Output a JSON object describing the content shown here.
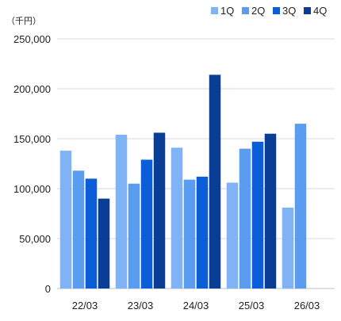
{
  "chart_data": {
    "type": "bar",
    "unit_label": "（千円）",
    "categories": [
      "22/03",
      "23/03",
      "24/03",
      "25/03",
      "26/03"
    ],
    "series": [
      {
        "name": "1Q",
        "color": "#7fb3f5",
        "values": [
          138000,
          154000,
          141000,
          106000,
          81000
        ]
      },
      {
        "name": "2Q",
        "color": "#5a9cf0",
        "values": [
          118000,
          105000,
          109000,
          140000,
          165000
        ]
      },
      {
        "name": "3Q",
        "color": "#0b5ed7",
        "values": [
          110000,
          129000,
          112000,
          147000,
          null
        ]
      },
      {
        "name": "4Q",
        "color": "#0a3e96",
        "values": [
          90000,
          156000,
          214000,
          155000,
          null
        ]
      }
    ],
    "y_ticks": [
      "0",
      "50,000",
      "100,000",
      "150,000",
      "200,000",
      "250,000"
    ],
    "ylim": [
      0,
      250000
    ],
    "grid": true,
    "legend_position": "top-right"
  }
}
